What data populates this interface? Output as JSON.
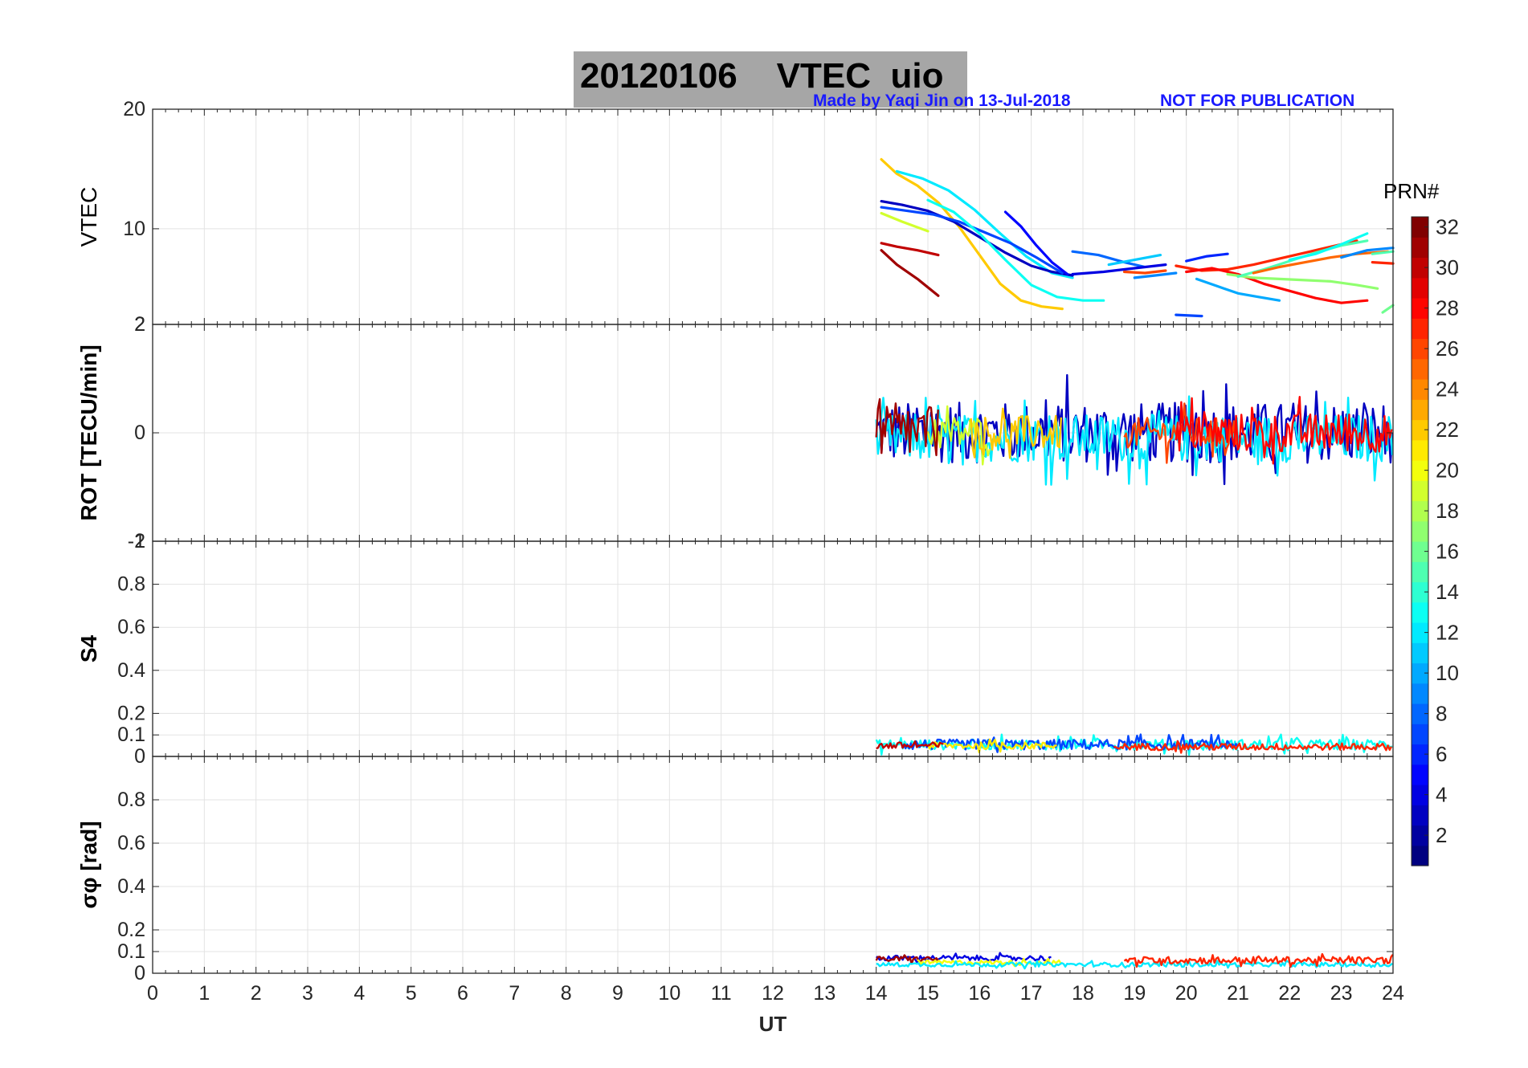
{
  "figure": {
    "title": "20120106    VTEC  uio",
    "credit_left": "Made by Yaqi Jin on 13-Jul-2018",
    "credit_right": "NOT FOR PUBLICATION",
    "xlabel": "UT",
    "x_ticks": [
      0,
      1,
      2,
      3,
      4,
      5,
      6,
      7,
      8,
      9,
      10,
      11,
      12,
      13,
      14,
      15,
      16,
      17,
      18,
      19,
      20,
      21,
      22,
      23,
      24
    ],
    "colorbar": {
      "label": "PRN#",
      "ticks": [
        2,
        4,
        6,
        8,
        10,
        12,
        14,
        16,
        18,
        20,
        22,
        24,
        26,
        28,
        30,
        32
      ],
      "range": [
        1,
        32
      ],
      "colormap": "jet"
    }
  },
  "chart_data": [
    {
      "type": "line",
      "panel": "VTEC",
      "ylabel": "VTEC",
      "ylim": [
        2,
        20
      ],
      "yticks": [
        {
          "value": 2,
          "label": "2"
        },
        {
          "value": 10,
          "label": "10"
        },
        {
          "value": 20,
          "label": "20"
        }
      ],
      "xlim": [
        0,
        24
      ],
      "grid": true,
      "series": [
        {
          "prn": 22,
          "x": [
            14.1,
            14.4,
            14.8,
            15.2,
            15.6,
            16.0,
            16.4,
            16.8,
            17.2,
            17.6
          ],
          "y": [
            15.8,
            14.6,
            13.6,
            12.2,
            10.2,
            7.8,
            5.4,
            4.0,
            3.5,
            3.3
          ]
        },
        {
          "prn": 12,
          "x": [
            14.4,
            14.9,
            15.4,
            15.9,
            16.4,
            16.9,
            17.4,
            17.8
          ],
          "y": [
            14.8,
            14.2,
            13.2,
            11.6,
            9.6,
            7.7,
            6.3,
            5.9
          ]
        },
        {
          "prn": 3,
          "x": [
            14.1,
            14.5,
            15.0,
            15.5,
            16.0,
            16.5,
            17.0,
            17.4,
            17.8
          ],
          "y": [
            12.3,
            12.0,
            11.5,
            10.6,
            9.3,
            8.0,
            6.9,
            6.4,
            6.1
          ]
        },
        {
          "prn": 19,
          "x": [
            14.1,
            14.5,
            15.0
          ],
          "y": [
            11.3,
            10.6,
            9.8
          ]
        },
        {
          "prn": 7,
          "x": [
            14.1,
            14.6,
            15.1,
            15.6,
            16.1,
            16.6,
            17.1,
            17.6
          ],
          "y": [
            11.8,
            11.5,
            11.2,
            10.6,
            9.7,
            8.8,
            7.6,
            6.3
          ]
        },
        {
          "prn": 13,
          "x": [
            15.0,
            15.5,
            16.0,
            16.5,
            17.0,
            17.5,
            18.0,
            18.4
          ],
          "y": [
            12.4,
            11.4,
            9.6,
            7.4,
            5.3,
            4.3,
            4.0,
            4.0
          ]
        },
        {
          "prn": 30,
          "x": [
            14.1,
            14.4,
            14.8,
            15.2
          ],
          "y": [
            8.8,
            8.5,
            8.2,
            7.8
          ]
        },
        {
          "prn": 31,
          "x": [
            14.1,
            14.4,
            14.8,
            15.2
          ],
          "y": [
            8.2,
            7.0,
            5.8,
            4.4
          ]
        },
        {
          "prn": 5,
          "x": [
            16.5,
            16.8,
            17.1,
            17.4,
            17.7
          ],
          "y": [
            11.4,
            10.2,
            8.6,
            7.2,
            6.2
          ]
        },
        {
          "prn": 8,
          "x": [
            17.8,
            18.3,
            18.8,
            19.2
          ],
          "y": [
            8.1,
            7.8,
            7.2,
            6.8
          ]
        },
        {
          "prn": 4,
          "x": [
            17.8,
            18.4,
            19.0,
            19.6
          ],
          "y": [
            6.2,
            6.4,
            6.7,
            7.0
          ]
        },
        {
          "prn": 11,
          "x": [
            18.5,
            19.0,
            19.5
          ],
          "y": [
            7.0,
            7.4,
            7.8
          ]
        },
        {
          "prn": 26,
          "x": [
            18.8,
            19.2,
            19.6
          ],
          "y": [
            6.4,
            6.3,
            6.5
          ]
        },
        {
          "prn": 9,
          "x": [
            19.0,
            19.4,
            19.8
          ],
          "y": [
            5.9,
            6.1,
            6.3
          ]
        },
        {
          "prn": 6,
          "x": [
            20.0,
            20.4,
            20.8
          ],
          "y": [
            7.3,
            7.7,
            7.9
          ]
        },
        {
          "prn": 7,
          "x": [
            19.8,
            20.3
          ],
          "y": [
            2.8,
            2.7
          ]
        },
        {
          "prn": 27,
          "x": [
            19.8,
            20.3,
            20.8,
            21.3,
            21.8,
            22.3,
            22.8,
            23.3
          ],
          "y": [
            6.9,
            6.5,
            6.6,
            7.0,
            7.5,
            8.0,
            8.5,
            9.0
          ]
        },
        {
          "prn": 28,
          "x": [
            20.0,
            20.5,
            21.0,
            21.5,
            22.0,
            22.5,
            23.0,
            23.5
          ],
          "y": [
            6.4,
            6.7,
            6.2,
            5.4,
            4.8,
            4.2,
            3.8,
            4.0
          ]
        },
        {
          "prn": 10,
          "x": [
            20.2,
            20.6,
            21.0,
            21.4,
            21.8
          ],
          "y": [
            5.8,
            5.2,
            4.6,
            4.3,
            4.0
          ]
        },
        {
          "prn": 17,
          "x": [
            20.8,
            21.3,
            21.8,
            22.3,
            22.8,
            23.3,
            23.7
          ],
          "y": [
            6.2,
            5.9,
            5.8,
            5.7,
            5.6,
            5.3,
            5.0
          ]
        },
        {
          "prn": 15,
          "x": [
            21.0,
            21.5,
            22.0,
            22.5,
            23.0,
            23.5
          ],
          "y": [
            6.0,
            6.6,
            7.3,
            8.0,
            8.6,
            9.0
          ]
        },
        {
          "prn": 13,
          "x": [
            22.0,
            22.5,
            23.0,
            23.5
          ],
          "y": [
            7.4,
            7.9,
            8.7,
            9.6
          ]
        },
        {
          "prn": 25,
          "x": [
            21.3,
            21.8,
            22.3,
            22.8,
            23.3,
            23.9
          ],
          "y": [
            6.3,
            6.8,
            7.2,
            7.6,
            7.9,
            8.1
          ]
        },
        {
          "prn": 9,
          "x": [
            23.0,
            23.5,
            24.0
          ],
          "y": [
            7.6,
            8.2,
            8.4
          ]
        },
        {
          "prn": 15,
          "x": [
            23.6,
            24.0
          ],
          "y": [
            7.9,
            8.1
          ]
        },
        {
          "prn": 16,
          "x": [
            23.8,
            24.0
          ],
          "y": [
            3.0,
            3.6
          ]
        },
        {
          "prn": 27,
          "x": [
            23.6,
            24.0
          ],
          "y": [
            7.2,
            7.1
          ]
        }
      ]
    },
    {
      "type": "scatter",
      "panel": "ROT",
      "ylabel": "ROT [TECU/min]",
      "ylim": [
        -2,
        2
      ],
      "yticks": [
        {
          "value": -2,
          "label": "-2"
        },
        {
          "value": 0,
          "label": "0"
        },
        {
          "value": 2,
          "label": "2"
        }
      ],
      "xlim": [
        0,
        24
      ],
      "grid": true,
      "bands": [
        {
          "prn": 3,
          "x": [
            14.0,
            24.0
          ],
          "center": 0.0,
          "amplitude": 0.7
        },
        {
          "prn": 12,
          "x": [
            14.0,
            24.0
          ],
          "center": -0.1,
          "amplitude": 0.55
        },
        {
          "prn": 19,
          "x": [
            15.0,
            16.2
          ],
          "center": 0.0,
          "amplitude": 0.4
        },
        {
          "prn": 22,
          "x": [
            15.8,
            17.6
          ],
          "center": 0.0,
          "amplitude": 0.4
        },
        {
          "prn": 31,
          "x": [
            14.0,
            15.2
          ],
          "center": 0.0,
          "amplitude": 0.6
        },
        {
          "prn": 26,
          "x": [
            18.8,
            21.0
          ],
          "center": 0.0,
          "amplitude": 0.35
        },
        {
          "prn": 28,
          "x": [
            19.8,
            24.0
          ],
          "center": 0.0,
          "amplitude": 0.45
        }
      ]
    },
    {
      "type": "scatter",
      "panel": "S4",
      "ylabel": "S4",
      "ylim": [
        0,
        1
      ],
      "yticks": [
        {
          "value": 0,
          "label": "0"
        },
        {
          "value": 0.1,
          "label": "0.1"
        },
        {
          "value": 0.2,
          "label": "0.2"
        },
        {
          "value": 0.4,
          "label": "0.4"
        },
        {
          "value": 0.6,
          "label": "0.6"
        },
        {
          "value": 0.8,
          "label": "0.8"
        },
        {
          "value": 1,
          "label": "1"
        }
      ],
      "xlim": [
        0,
        24
      ],
      "grid": true,
      "bands": [
        {
          "prn": 13,
          "x": [
            14.0,
            24.0
          ],
          "center": 0.055,
          "amplitude": 0.03
        },
        {
          "prn": 7,
          "x": [
            14.5,
            21.0
          ],
          "center": 0.055,
          "amplitude": 0.03
        },
        {
          "prn": 21,
          "x": [
            15.0,
            17.5
          ],
          "center": 0.05,
          "amplitude": 0.02
        },
        {
          "prn": 30,
          "x": [
            14.0,
            15.3
          ],
          "center": 0.05,
          "amplitude": 0.02
        },
        {
          "prn": 27,
          "x": [
            18.6,
            24.0
          ],
          "center": 0.045,
          "amplitude": 0.02
        }
      ]
    },
    {
      "type": "scatter",
      "panel": "sigma_phi",
      "ylabel": "σφ [rad]",
      "ylim": [
        0,
        1
      ],
      "yticks": [
        {
          "value": 0,
          "label": "0"
        },
        {
          "value": 0.1,
          "label": "0.1"
        },
        {
          "value": 0.2,
          "label": "0.2"
        },
        {
          "value": 0.4,
          "label": "0.4"
        },
        {
          "value": 0.6,
          "label": "0.6"
        },
        {
          "value": 0.8,
          "label": "0.8"
        }
      ],
      "xlim": [
        0,
        24
      ],
      "grid": true,
      "bands": [
        {
          "prn": 4,
          "x": [
            14.0,
            17.4
          ],
          "center": 0.07,
          "amplitude": 0.015
        },
        {
          "prn": 31,
          "x": [
            14.0,
            15.2
          ],
          "center": 0.065,
          "amplitude": 0.015
        },
        {
          "prn": 20,
          "x": [
            14.8,
            17.6
          ],
          "center": 0.05,
          "amplitude": 0.012
        },
        {
          "prn": 12,
          "x": [
            14.0,
            24.0
          ],
          "center": 0.04,
          "amplitude": 0.012
        },
        {
          "prn": 27,
          "x": [
            18.8,
            24.0
          ],
          "center": 0.06,
          "amplitude": 0.02
        }
      ]
    }
  ]
}
